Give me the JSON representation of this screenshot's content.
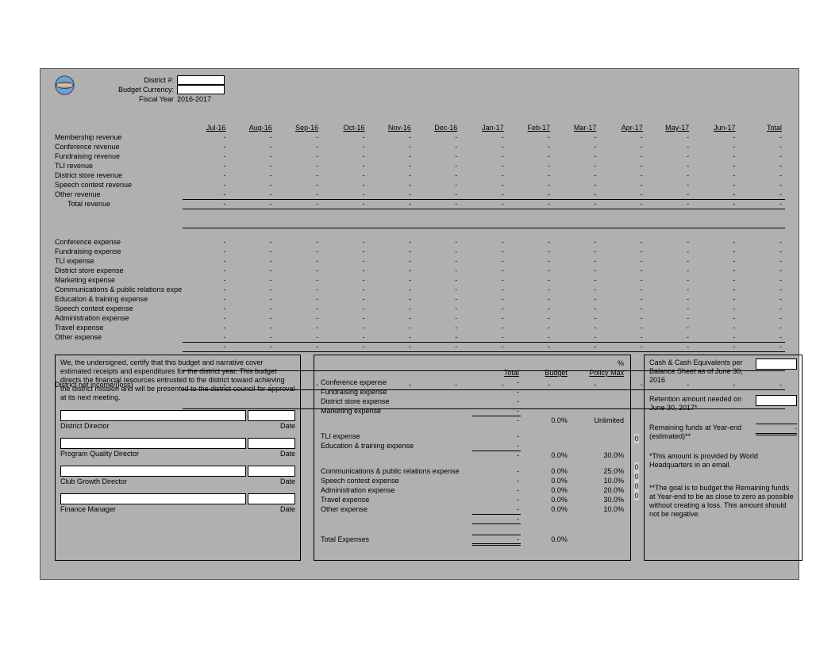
{
  "header": {
    "district_label": "District #:",
    "currency_label": "Budget Currency:",
    "fy_label": "Fiscal Year",
    "fy_value": "2016-2017"
  },
  "months": [
    "Jul-16",
    "Aug-16",
    "Sep-16",
    "Oct-16",
    "Nov-16",
    "Dec-16",
    "Jan-17",
    "Feb-17",
    "Mar-17",
    "Apr-17",
    "May-17",
    "Jun-17",
    "Total"
  ],
  "revenue_rows": [
    "Membership revenue",
    "Conference revenue",
    "Fundraising revenue",
    "TLI revenue",
    "District store revenue",
    "Speech contest revenue",
    "Other revenue"
  ],
  "total_revenue_label": "Total revenue",
  "expense_rows_main": [
    "Conference expense",
    "Fundraising expense",
    "TLI expense",
    "District store expense",
    "Marketing expense",
    "Communications & public relations expe",
    "Education & training expense",
    "Speech contest expense",
    "Administration expense",
    "Travel expense",
    "Other expense"
  ],
  "net_label": "District net income/(loss)",
  "dash": "-",
  "cert": {
    "text": "We, the undersigned, certify that this budget and narrative cover estimated receipts and expenditures for the district year. This budget directs the financial resources entrusted to the district toward achieving the district mission and will be presented to the district council for approval at its next meeting.",
    "roles": [
      "District Director",
      "Program Quality Director",
      "Club Growth Director",
      "Finance Manager"
    ],
    "date_label": "Date"
  },
  "exp_summary": {
    "pct_header": "%",
    "cols": [
      "Total",
      "Budget",
      "Policy Max"
    ],
    "group1": [
      {
        "label": "Conference expense",
        "total": "-"
      },
      {
        "label": "Fundraising expense",
        "total": "-"
      },
      {
        "label": "District store expense",
        "total": "-"
      },
      {
        "label": "Marketing expense",
        "total": "-"
      }
    ],
    "group1_sub": {
      "total": "-",
      "budget": "0.0%",
      "max": "Unlimited"
    },
    "group2": [
      {
        "label": "TLI expense",
        "total": "-"
      },
      {
        "label": "Education & training expense",
        "total": "-"
      }
    ],
    "group2_sub": {
      "total": "-",
      "budget": "0.0%",
      "max": "30.0%"
    },
    "group3": [
      {
        "label": "Communications & public relations expense",
        "total": "-",
        "budget": "0.0%",
        "max": "25.0%"
      },
      {
        "label": "Speech contest expense",
        "total": "-",
        "budget": "0.0%",
        "max": "10.0%"
      },
      {
        "label": "Administration expense",
        "total": "-",
        "budget": "0.0%",
        "max": "20.0%"
      },
      {
        "label": "Travel expense",
        "total": "-",
        "budget": "0.0%",
        "max": "30.0%"
      },
      {
        "label": "Other expense",
        "total": "-",
        "budget": "0.0%",
        "max": "10.0%"
      }
    ],
    "group3_sub": {
      "total": "-"
    },
    "total_row": {
      "label": "Total Expenses",
      "total": "-",
      "budget": "0.0%"
    }
  },
  "cash": {
    "line1": "Cash & Cash Equivalents per Balance Sheet as of June 30, 2016",
    "line2": "Retention amount needed on June 30, 2017*",
    "line3": "Remaining funds at Year-end (estimated)**",
    "line3_val": "-",
    "note1": "*This amount is provided by World Headquarters in an email.",
    "note2": "**The goal is to budget the Remaining funds at Year-end to be as close to zero as possible without creating a loss.  This amount should not be negative.",
    "zero": "0"
  }
}
